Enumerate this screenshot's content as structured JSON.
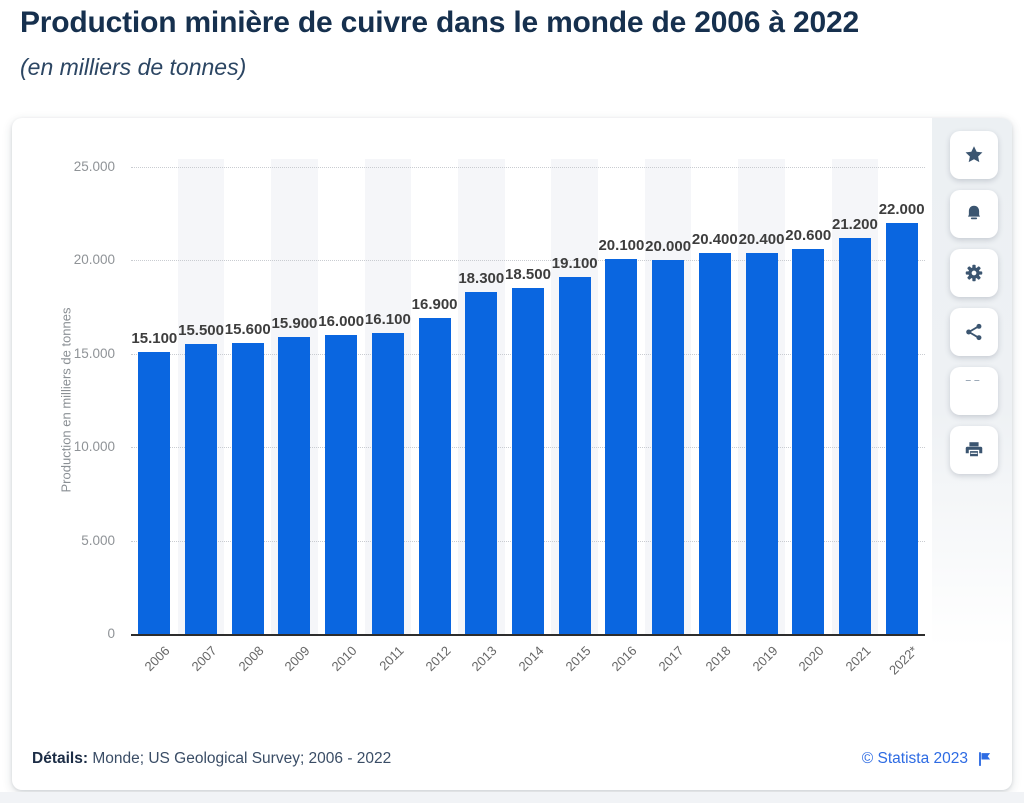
{
  "header": {
    "title": "Production minière de cuivre dans le monde de 2006 à 2022",
    "subtitle": "(en milliers de tonnes)"
  },
  "chart_data": {
    "type": "bar",
    "title": "Production minière de cuivre dans le monde de 2006 à 2022",
    "subtitle": "(en milliers de tonnes)",
    "categories": [
      "2006",
      "2007",
      "2008",
      "2009",
      "2010",
      "2011",
      "2012",
      "2013",
      "2014",
      "2015",
      "2016",
      "2017",
      "2018",
      "2019",
      "2020",
      "2021",
      "2022*"
    ],
    "values": [
      15100,
      15500,
      15600,
      15900,
      16000,
      16100,
      16900,
      18300,
      18500,
      19100,
      20100,
      20000,
      20400,
      20400,
      20600,
      21200,
      22000
    ],
    "value_labels": [
      "15.100",
      "15.500",
      "15.600",
      "15.900",
      "16.000",
      "16.100",
      "16.900",
      "18.300",
      "18.500",
      "19.100",
      "20.100",
      "20.000",
      "20.400",
      "20.400",
      "20.600",
      "21.200",
      "22.000"
    ],
    "xlabel": "",
    "ylabel": "Production en milliers de tonnes",
    "ylim": [
      0,
      25000
    ],
    "ytick_labels": [
      "0",
      "5.000",
      "10.000",
      "15.000",
      "20.000",
      "25.000"
    ],
    "grid": "horizontal-dotted",
    "legend": "none",
    "bar_color": "#0a66e0",
    "alternate_band_color": "#f5f6f9"
  },
  "sidebar": {
    "buttons": [
      {
        "label": "favorite",
        "icon": "star-icon"
      },
      {
        "label": "notification",
        "icon": "bell-icon"
      },
      {
        "label": "settings",
        "icon": "gear-icon"
      },
      {
        "label": "share",
        "icon": "share-icon"
      },
      {
        "label": "cite",
        "icon": "quote-icon"
      },
      {
        "label": "print",
        "icon": "printer-icon"
      }
    ]
  },
  "footer": {
    "details_label": "Détails:",
    "details_text": "Monde; US Geological Survey; 2006 - 2022",
    "copyright": "© Statista 2023"
  }
}
